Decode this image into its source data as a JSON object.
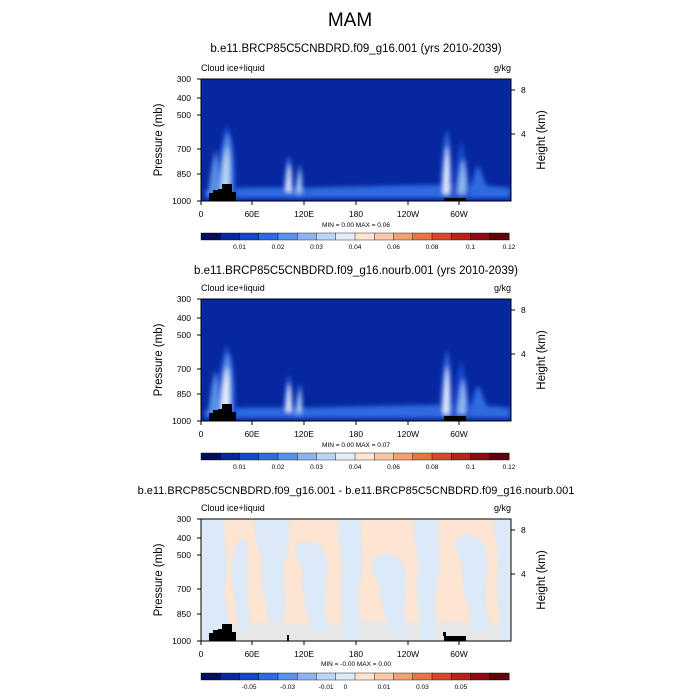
{
  "page": {
    "title": "MAM"
  },
  "colors": {
    "background_panel1": "#06279f",
    "background_panel3": "#fce4d0",
    "diff_blue": "#dbe9f8",
    "topography": "#000000"
  },
  "chart_data": [
    {
      "type": "heatmap",
      "title": "b.e11.BRCP85C5CNBDRD.f09_g16.001 (yrs 2010-2039)",
      "left_label": "Cloud ice+liquid",
      "right_label": "g/kg",
      "ylabel": "Pressure (mb)",
      "ylabel_right": "Height (km)",
      "xticks": [
        "0",
        "60E",
        "120E",
        "180",
        "120W",
        "60W"
      ],
      "yticks": [
        "300",
        "400",
        "500",
        "700",
        "850",
        "1000"
      ],
      "yticks_right": [
        "8",
        "4"
      ],
      "stats": "MIN =   0.00  MAX =   0.06",
      "colorbar": {
        "labels": [
          "0.01",
          "0.02",
          "0.03",
          "0.04",
          "0.06",
          "0.08",
          "0.1",
          "0.12"
        ],
        "colors": [
          "#040d5a",
          "#06279f",
          "#1446cc",
          "#2f6ae0",
          "#5990e8",
          "#8cb5f0",
          "#bcd5f5",
          "#e4eefb",
          "#fbe6d3",
          "#f7c8a6",
          "#f1a074",
          "#e87346",
          "#d6482a",
          "#b8231b",
          "#8c0c10",
          "#5e0308"
        ]
      },
      "features": [
        {
          "lon": 30,
          "p_top": 620,
          "intensity": 0.06
        },
        {
          "lon": 20,
          "p_top": 720,
          "intensity": 0.04
        },
        {
          "lon": 100,
          "p_top": 760,
          "intensity": 0.05
        },
        {
          "lon": 295,
          "p_top": 650,
          "intensity": 0.06
        },
        {
          "lon": 310,
          "p_top": 720,
          "intensity": 0.05
        }
      ]
    },
    {
      "type": "heatmap",
      "title": "b.e11.BRCP85C5CNBDRD.f09_g16.nourb.001 (yrs 2010-2039)",
      "left_label": "Cloud ice+liquid",
      "right_label": "g/kg",
      "ylabel": "Pressure (mb)",
      "ylabel_right": "Height (km)",
      "xticks": [
        "0",
        "60E",
        "120E",
        "180",
        "120W",
        "60W"
      ],
      "yticks": [
        "300",
        "400",
        "500",
        "700",
        "850",
        "1000"
      ],
      "yticks_right": [
        "8",
        "4"
      ],
      "stats": "MIN =   0.00  MAX =   0.07",
      "colorbar": {
        "labels": [
          "0.01",
          "0.02",
          "0.03",
          "0.04",
          "0.06",
          "0.08",
          "0.1",
          "0.12"
        ],
        "colors": [
          "#040d5a",
          "#06279f",
          "#1446cc",
          "#2f6ae0",
          "#5990e8",
          "#8cb5f0",
          "#bcd5f5",
          "#e4eefb",
          "#fbe6d3",
          "#f7c8a6",
          "#f1a074",
          "#e87346",
          "#d6482a",
          "#b8231b",
          "#8c0c10",
          "#5e0308"
        ]
      },
      "features": [
        {
          "lon": 30,
          "p_top": 620,
          "intensity": 0.07
        },
        {
          "lon": 20,
          "p_top": 720,
          "intensity": 0.04
        },
        {
          "lon": 100,
          "p_top": 760,
          "intensity": 0.05
        },
        {
          "lon": 295,
          "p_top": 650,
          "intensity": 0.06
        },
        {
          "lon": 310,
          "p_top": 720,
          "intensity": 0.05
        }
      ]
    },
    {
      "type": "heatmap",
      "title": "b.e11.BRCP85C5CNBDRD.f09_g16.001 - b.e11.BRCP85C5CNBDRD.f09_g16.nourb.001",
      "left_label": "Cloud ice+liquid",
      "right_label": "g/kg",
      "ylabel": "Pressure (mb)",
      "ylabel_right": "Height (km)",
      "xticks": [
        "0",
        "60E",
        "120E",
        "180",
        "120W",
        "60W"
      ],
      "yticks": [
        "300",
        "400",
        "500",
        "700",
        "850",
        "1000"
      ],
      "yticks_right": [
        "8",
        "4"
      ],
      "stats": "MIN =  -0.00  MAX =   0.00",
      "colorbar": {
        "labels": [
          "-0.05",
          "-0.03",
          "-0.01",
          "0",
          "0.01",
          "0.03",
          "0.05"
        ],
        "colors": [
          "#040d5a",
          "#06279f",
          "#1446cc",
          "#2f6ae0",
          "#5990e8",
          "#8cb5f0",
          "#bcd5f5",
          "#dbe9f8",
          "#fce4d0",
          "#f7c8a6",
          "#f1a074",
          "#e87346",
          "#d6482a",
          "#b8231b",
          "#8c0c10",
          "#5e0308"
        ]
      }
    }
  ]
}
